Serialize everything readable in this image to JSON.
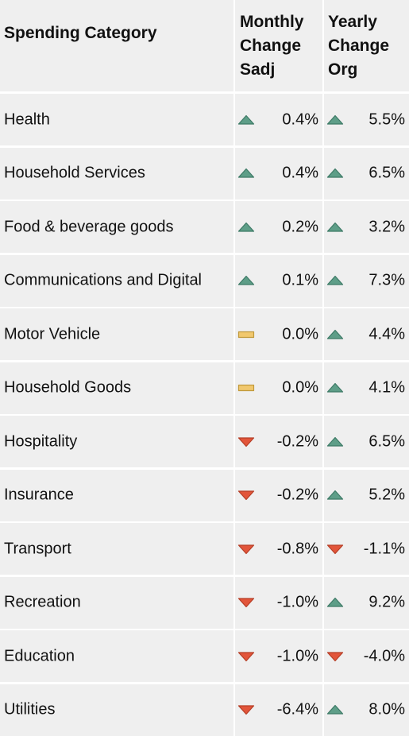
{
  "chart_data": {
    "type": "table",
    "columns": [
      "Spending Category",
      "Monthly Change Sadj",
      "Yearly Change Org"
    ],
    "rows": [
      {
        "category": "Health",
        "monthly": "0.4%",
        "monthly_trend": "up",
        "yearly": "5.5%",
        "yearly_trend": "up"
      },
      {
        "category": "Household Services",
        "monthly": "0.4%",
        "monthly_trend": "up",
        "yearly": "6.5%",
        "yearly_trend": "up"
      },
      {
        "category": "Food & beverage goods",
        "monthly": "0.2%",
        "monthly_trend": "up",
        "yearly": "3.2%",
        "yearly_trend": "up"
      },
      {
        "category": "Communications and Digital",
        "monthly": "0.1%",
        "monthly_trend": "up",
        "yearly": "7.3%",
        "yearly_trend": "up"
      },
      {
        "category": "Motor Vehicle",
        "monthly": "0.0%",
        "monthly_trend": "flat",
        "yearly": "4.4%",
        "yearly_trend": "up"
      },
      {
        "category": "Household Goods",
        "monthly": "0.0%",
        "monthly_trend": "flat",
        "yearly": "4.1%",
        "yearly_trend": "up"
      },
      {
        "category": "Hospitality",
        "monthly": "-0.2%",
        "monthly_trend": "down",
        "yearly": "6.5%",
        "yearly_trend": "up"
      },
      {
        "category": "Insurance",
        "monthly": "-0.2%",
        "monthly_trend": "down",
        "yearly": "5.2%",
        "yearly_trend": "up"
      },
      {
        "category": "Transport",
        "monthly": "-0.8%",
        "monthly_trend": "down",
        "yearly": "-1.1%",
        "yearly_trend": "down"
      },
      {
        "category": "Recreation",
        "monthly": "-1.0%",
        "monthly_trend": "down",
        "yearly": "9.2%",
        "yearly_trend": "up"
      },
      {
        "category": "Education",
        "monthly": "-1.0%",
        "monthly_trend": "down",
        "yearly": "-4.0%",
        "yearly_trend": "down"
      },
      {
        "category": "Utilities",
        "monthly": "-6.4%",
        "monthly_trend": "down",
        "yearly": "8.0%",
        "yearly_trend": "up"
      }
    ]
  },
  "colors": {
    "up_fill": "#5e9e88",
    "up_stroke": "#3d7a66",
    "down_fill": "#e2553a",
    "down_stroke": "#b63e26",
    "flat_fill": "#f1c86e",
    "flat_stroke": "#c19a3c"
  },
  "icons": {
    "up": "triangle-up-icon",
    "down": "triangle-down-icon",
    "flat": "flat-bar-icon"
  }
}
